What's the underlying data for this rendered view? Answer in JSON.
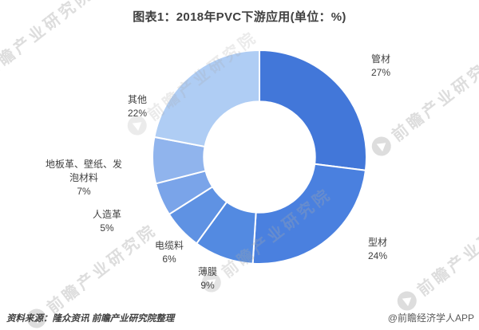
{
  "page": {
    "background": "#ffffff"
  },
  "chart_data": {
    "type": "donut",
    "title": "图表1：2018年PVC下游应用(单位：%)",
    "unit": "%",
    "start_angle": "top",
    "direction": "clockwise",
    "inner_radius_ratio": 0.52,
    "segments": [
      {
        "label": "管材",
        "value": 27,
        "pct": "27%",
        "color": "#4277D9"
      },
      {
        "label": "型材",
        "value": 24,
        "pct": "24%",
        "color": "#4A80DF"
      },
      {
        "label": "薄膜",
        "value": 9,
        "pct": "9%",
        "color": "#538AE1"
      },
      {
        "label": "电缆料",
        "value": 6,
        "pct": "6%",
        "color": "#5F92E3"
      },
      {
        "label": "人造革",
        "value": 5,
        "pct": "5%",
        "color": "#7AA4E9"
      },
      {
        "label": "地板革、壁纸、发泡材料",
        "value": 7,
        "pct": "7%",
        "color": "#90B4ED",
        "label_lines": [
          "地板革、壁纸、发",
          "泡材料"
        ]
      },
      {
        "label": "其他",
        "value": 22,
        "pct": "22%",
        "color": "#AFCDF4"
      }
    ]
  },
  "watermark": {
    "text": "前瞻产业研究院"
  },
  "footer": {
    "source": "资料来源：隆众资讯 前瞻产业研究院整理",
    "credit": "@前瞻经济学人APP"
  }
}
